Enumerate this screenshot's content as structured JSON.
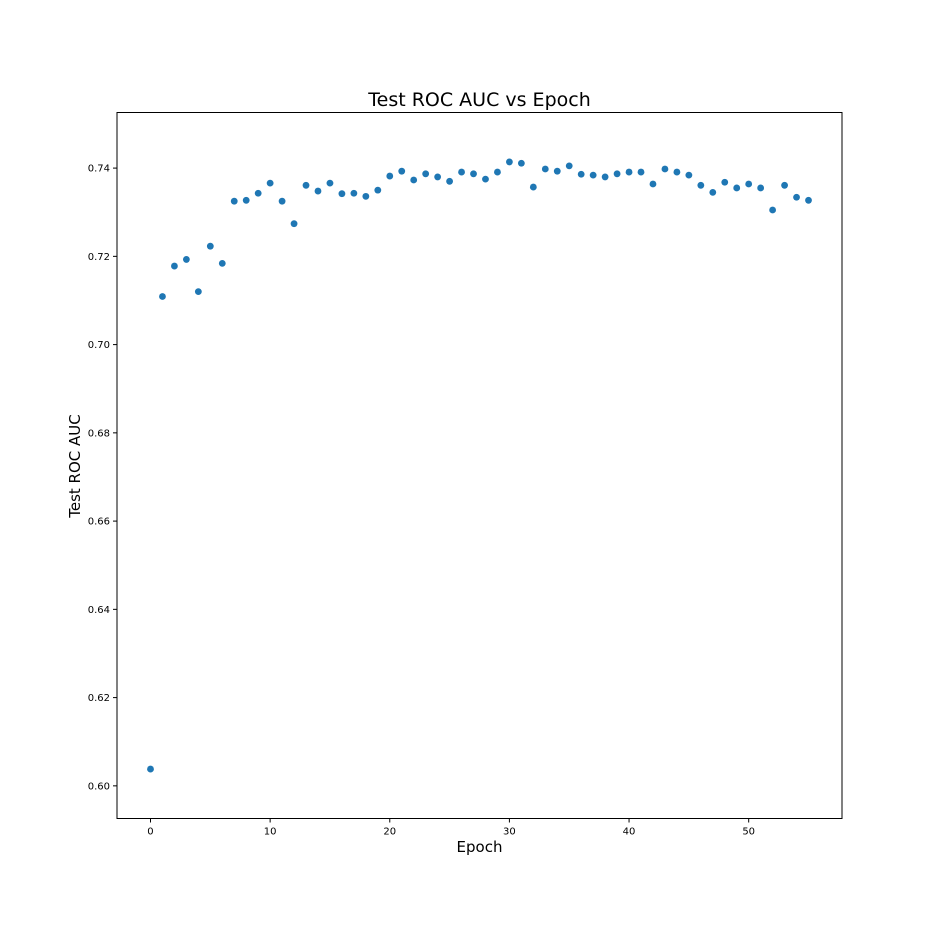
{
  "chart_data": {
    "type": "scatter",
    "title": "Test ROC AUC vs Epoch",
    "xlabel": "Epoch",
    "ylabel": "Test ROC AUC",
    "xlim": [
      -2.8,
      57.8
    ],
    "ylim": [
      0.5926,
      0.7526
    ],
    "xticks": [
      0,
      10,
      20,
      30,
      40,
      50
    ],
    "yticks": [
      0.6,
      0.62,
      0.64,
      0.66,
      0.68,
      0.7,
      0.72,
      0.74
    ],
    "ytick_labels": [
      "0.60",
      "0.62",
      "0.64",
      "0.66",
      "0.68",
      "0.70",
      "0.72",
      "0.74"
    ],
    "grid": false,
    "marker_color": "#1f77b4",
    "x": [
      0,
      1,
      2,
      3,
      4,
      5,
      6,
      7,
      8,
      9,
      10,
      11,
      12,
      13,
      14,
      15,
      16,
      17,
      18,
      19,
      20,
      21,
      22,
      23,
      24,
      25,
      26,
      27,
      28,
      29,
      30,
      31,
      32,
      33,
      34,
      35,
      36,
      37,
      38,
      39,
      40,
      41,
      42,
      43,
      44,
      45,
      46,
      47,
      48,
      49,
      50,
      51,
      52,
      53,
      54,
      55
    ],
    "y": [
      0.6038,
      0.7109,
      0.7178,
      0.7193,
      0.712,
      0.7223,
      0.7184,
      0.7325,
      0.7327,
      0.7343,
      0.7366,
      0.7325,
      0.7274,
      0.7361,
      0.7348,
      0.7366,
      0.7342,
      0.7343,
      0.7336,
      0.735,
      0.7382,
      0.7393,
      0.7373,
      0.7387,
      0.738,
      0.737,
      0.7391,
      0.7387,
      0.7375,
      0.7391,
      0.7414,
      0.7411,
      0.7357,
      0.7398,
      0.7393,
      0.7405,
      0.7386,
      0.7384,
      0.738,
      0.7387,
      0.7391,
      0.7391,
      0.7364,
      0.7398,
      0.7391,
      0.7384,
      0.7361,
      0.7345,
      0.7368,
      0.7355,
      0.7364,
      0.7355,
      0.7305,
      0.7361,
      0.7334,
      0.7327
    ]
  }
}
